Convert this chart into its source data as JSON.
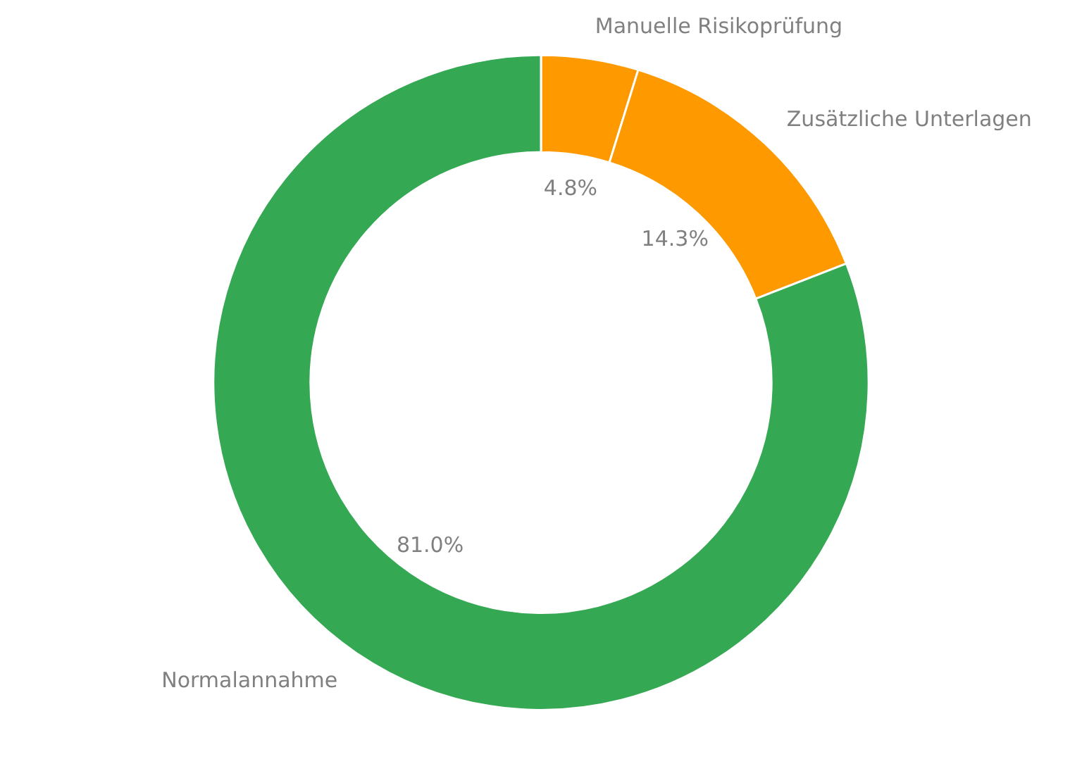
{
  "chart_data": {
    "type": "donut",
    "categories": [
      "Manuelle Risikoprüfung",
      "Zusätzliche Unterlagen",
      "Normalannahme"
    ],
    "values": [
      4.8,
      14.3,
      81.0
    ],
    "value_labels": [
      "4.8%",
      "14.3%",
      "81.0%"
    ],
    "colors": [
      "#ff9900",
      "#ff9900",
      "#34a853"
    ]
  }
}
